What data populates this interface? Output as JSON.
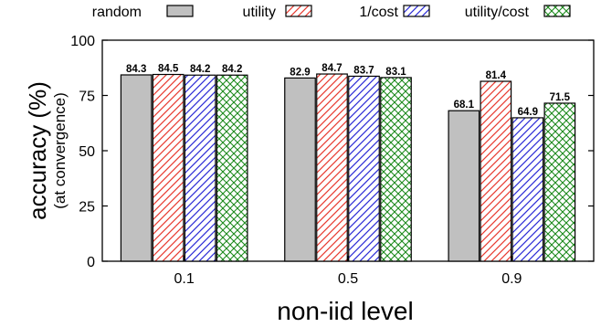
{
  "chart_data": {
    "type": "bar",
    "categories": [
      "0.1",
      "0.5",
      "0.9"
    ],
    "series": [
      {
        "name": "random",
        "pattern": "solid",
        "color": "#c0c0c0",
        "values": [
          84.3,
          82.9,
          68.1
        ]
      },
      {
        "name": "utility",
        "pattern": "hatch-right",
        "color": "#e8392f",
        "values": [
          84.5,
          84.7,
          81.4
        ]
      },
      {
        "name": "1/cost",
        "pattern": "hatch-right",
        "color": "#2b2bd6",
        "values": [
          84.2,
          83.7,
          64.9
        ]
      },
      {
        "name": "utility/cost",
        "pattern": "crosshatch",
        "color": "#1d8a1d",
        "values": [
          84.2,
          83.1,
          71.5
        ]
      }
    ],
    "data_labels": [
      [
        "84.3",
        "84.5",
        "84.2",
        "84.2"
      ],
      [
        "82.9",
        "84.7",
        "83.7",
        "83.1"
      ],
      [
        "68.1",
        "81.4",
        "64.9",
        "71.5"
      ]
    ],
    "title": "",
    "xlabel": "non-iid level",
    "ylabel": "accuracy (%)",
    "ylabel_sub": "(at convergence)",
    "ylim": [
      0,
      100
    ],
    "yticks": [
      "0",
      "25",
      "50",
      "75",
      "100"
    ],
    "grid": false,
    "legend_position": "top"
  }
}
